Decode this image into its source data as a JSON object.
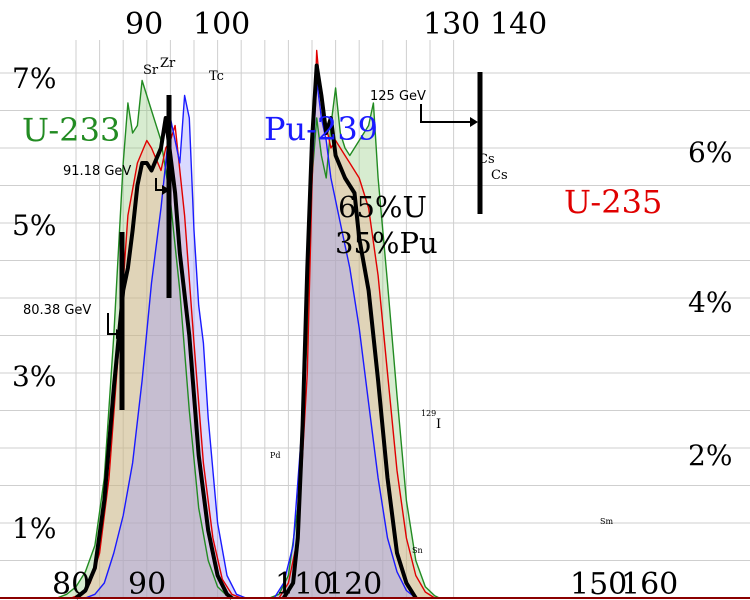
{
  "chart_data": {
    "type": "area",
    "x_ticks_bottom": [
      "80",
      "90",
      "110",
      "120",
      "150",
      "160"
    ],
    "x_ticks_top": [
      "90",
      "100",
      "130",
      "140"
    ],
    "y_ticks_left": [
      "1%",
      "3%",
      "5%",
      "7%"
    ],
    "y_ticks_right": [
      "2%",
      "4%",
      "6%"
    ],
    "mix_label": [
      "65%U",
      "35%Pu"
    ],
    "series": [
      {
        "name": "U-233",
        "color": "#228b22",
        "points": [
          [
            76,
            0
          ],
          [
            78,
            0.05
          ],
          [
            80,
            0.15
          ],
          [
            82,
            0.35
          ],
          [
            84,
            0.7
          ],
          [
            86,
            1.6
          ],
          [
            88,
            3.5
          ],
          [
            90,
            5.8
          ],
          [
            91,
            6.6
          ],
          [
            92,
            6.2
          ],
          [
            93,
            6.3
          ],
          [
            94,
            6.9
          ],
          [
            95,
            6.7
          ],
          [
            96,
            6.5
          ],
          [
            98,
            6.1
          ],
          [
            100,
            5.3
          ],
          [
            102,
            4.1
          ],
          [
            104,
            2.5
          ],
          [
            106,
            1.2
          ],
          [
            108,
            0.5
          ],
          [
            110,
            0.15
          ],
          [
            112,
            0.03
          ],
          [
            114,
            0
          ],
          [
            121,
            0
          ],
          [
            123,
            0.05
          ],
          [
            125,
            0.3
          ],
          [
            127,
            1.2
          ],
          [
            129,
            3.5
          ],
          [
            130,
            5.6
          ],
          [
            131,
            6.4
          ],
          [
            132,
            5.9
          ],
          [
            133,
            5.6
          ],
          [
            134,
            6.3
          ],
          [
            135,
            6.8
          ],
          [
            136,
            6.2
          ],
          [
            137,
            6.0
          ],
          [
            138,
            5.9
          ],
          [
            140,
            6.1
          ],
          [
            142,
            6.3
          ],
          [
            143,
            6.6
          ],
          [
            144,
            5.6
          ],
          [
            146,
            4.2
          ],
          [
            148,
            2.7
          ],
          [
            150,
            1.3
          ],
          [
            152,
            0.5
          ],
          [
            154,
            0.15
          ],
          [
            156,
            0.03
          ],
          [
            157,
            0
          ]
        ]
      },
      {
        "name": "U-235",
        "color": "#e00000",
        "points": [
          [
            79,
            0
          ],
          [
            81,
            0.05
          ],
          [
            83,
            0.2
          ],
          [
            85,
            0.6
          ],
          [
            87,
            1.6
          ],
          [
            89,
            3.3
          ],
          [
            91,
            5.1
          ],
          [
            93,
            5.8
          ],
          [
            95,
            6.1
          ],
          [
            96,
            6.0
          ],
          [
            98,
            5.7
          ],
          [
            99,
            6.0
          ],
          [
            100,
            6.1
          ],
          [
            101,
            6.3
          ],
          [
            103,
            5.1
          ],
          [
            105,
            3.4
          ],
          [
            107,
            1.8
          ],
          [
            109,
            0.8
          ],
          [
            111,
            0.25
          ],
          [
            113,
            0.05
          ],
          [
            115,
            0
          ],
          [
            123,
            0
          ],
          [
            125,
            0.2
          ],
          [
            127,
            0.8
          ],
          [
            129,
            3.0
          ],
          [
            130,
            5.5
          ],
          [
            131,
            7.3
          ],
          [
            132,
            6.6
          ],
          [
            133,
            6.3
          ],
          [
            134,
            6.0
          ],
          [
            135,
            6.1
          ],
          [
            137,
            5.9
          ],
          [
            138,
            5.8
          ],
          [
            140,
            5.6
          ],
          [
            142,
            5.2
          ],
          [
            144,
            4.3
          ],
          [
            146,
            3.0
          ],
          [
            148,
            1.7
          ],
          [
            150,
            0.8
          ],
          [
            152,
            0.3
          ],
          [
            154,
            0.08
          ],
          [
            156,
            0
          ]
        ]
      },
      {
        "name": "Pu-239",
        "color": "#1a1aff",
        "points": [
          [
            82,
            0
          ],
          [
            84,
            0.05
          ],
          [
            86,
            0.2
          ],
          [
            88,
            0.6
          ],
          [
            90,
            1.1
          ],
          [
            92,
            1.8
          ],
          [
            94,
            2.9
          ],
          [
            96,
            4.2
          ],
          [
            98,
            5.2
          ],
          [
            100,
            6.4
          ],
          [
            101,
            6.1
          ],
          [
            102,
            5.8
          ],
          [
            103,
            6.7
          ],
          [
            104,
            6.4
          ],
          [
            105,
            4.9
          ],
          [
            106,
            3.9
          ],
          [
            107,
            3.4
          ],
          [
            108,
            2.4
          ],
          [
            110,
            1.0
          ],
          [
            112,
            0.3
          ],
          [
            114,
            0.05
          ],
          [
            116,
            0
          ],
          [
            122,
            0
          ],
          [
            124,
            0.2
          ],
          [
            126,
            0.7
          ],
          [
            128,
            2.4
          ],
          [
            129,
            4.2
          ],
          [
            130,
            5.7
          ],
          [
            131,
            6.9
          ],
          [
            132,
            6.4
          ],
          [
            133,
            6.1
          ],
          [
            134,
            5.6
          ],
          [
            136,
            5.0
          ],
          [
            138,
            4.4
          ],
          [
            140,
            3.6
          ],
          [
            142,
            2.6
          ],
          [
            144,
            1.6
          ],
          [
            146,
            0.8
          ],
          [
            148,
            0.35
          ],
          [
            150,
            0.1
          ],
          [
            152,
            0
          ]
        ]
      },
      {
        "name": "",
        "color": "#000000",
        "points": [
          [
            80,
            0
          ],
          [
            82,
            0.1
          ],
          [
            84,
            0.4
          ],
          [
            86,
            1.3
          ],
          [
            88,
            2.8
          ],
          [
            90,
            4.1
          ],
          [
            91,
            4.4
          ],
          [
            92,
            4.9
          ],
          [
            93,
            5.5
          ],
          [
            94,
            5.8
          ],
          [
            95,
            5.8
          ],
          [
            96,
            5.7
          ],
          [
            98,
            6.0
          ],
          [
            99,
            6.4
          ],
          [
            101,
            5.4
          ],
          [
            102,
            4.6
          ],
          [
            104,
            3.5
          ],
          [
            106,
            1.9
          ],
          [
            108,
            0.9
          ],
          [
            110,
            0.3
          ],
          [
            112,
            0.05
          ],
          [
            113,
            0
          ],
          [
            124,
            0
          ],
          [
            126,
            0.2
          ],
          [
            127,
            0.8
          ],
          [
            128,
            2.3
          ],
          [
            129,
            4.4
          ],
          [
            130,
            6.1
          ],
          [
            131,
            7.1
          ],
          [
            132,
            6.7
          ],
          [
            133,
            6.2
          ],
          [
            134,
            6.4
          ],
          [
            135,
            5.9
          ],
          [
            137,
            5.6
          ],
          [
            139,
            5.4
          ],
          [
            140,
            4.8
          ],
          [
            142,
            4.1
          ],
          [
            144,
            2.9
          ],
          [
            146,
            1.6
          ],
          [
            148,
            0.6
          ],
          [
            150,
            0.2
          ],
          [
            152,
            0
          ]
        ]
      }
    ],
    "series_labels": [
      {
        "text": "U-233",
        "color": "#228b22"
      },
      {
        "text": "Pu-239",
        "color": "#1a1aff"
      },
      {
        "text": "U-235",
        "color": "#e00000"
      }
    ],
    "markers": [
      {
        "label": "80.38 GeV",
        "mass": 80.38
      },
      {
        "label": "91.18 GeV",
        "mass": 91.18
      },
      {
        "label": "125 GeV",
        "mass": 125
      }
    ],
    "element_labels": [
      "Sr",
      "Zr",
      "Tc",
      "Cs",
      "Cs",
      "Pd",
      "Sn",
      "Sm",
      "129",
      "I"
    ]
  }
}
